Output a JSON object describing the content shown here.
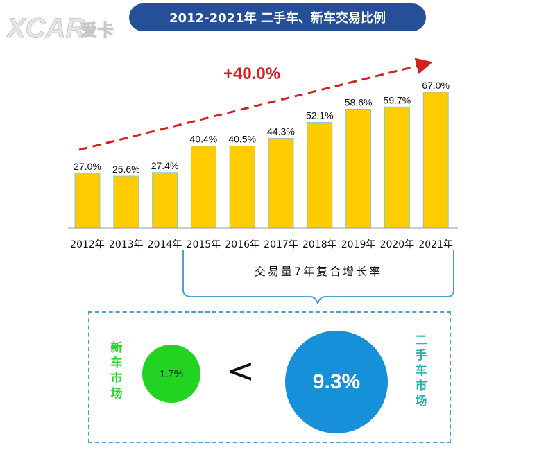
{
  "header": {
    "title": "2012-2021年 二手车、新车交易比例"
  },
  "logo": {
    "text": "XCAR爱卡"
  },
  "chart_data": {
    "type": "bar",
    "categories": [
      "2012年",
      "2013年",
      "2014年",
      "2015年",
      "2016年",
      "2017年",
      "2018年",
      "2019年",
      "2020年",
      "2021年"
    ],
    "values": [
      27.0,
      25.6,
      27.4,
      40.4,
      40.5,
      44.3,
      52.1,
      58.6,
      59.7,
      67.0
    ],
    "value_labels": [
      "27.0%",
      "25.6%",
      "27.4%",
      "40.4%",
      "40.5%",
      "44.3%",
      "52.1%",
      "58.6%",
      "59.7%",
      "67.0%"
    ],
    "ylim": [
      0,
      70
    ],
    "bar_color": "#ffcc00",
    "annotations": {
      "growth": "+40.0%",
      "cagr_caption": "交易量7年复合增长率"
    }
  },
  "comparison": {
    "new_market": {
      "label": "新车市场",
      "value": "1.7%",
      "color": "#22d322"
    },
    "operator": "<",
    "used_market": {
      "label": "二手车市场",
      "value": "9.3%",
      "color": "#1590d9"
    }
  },
  "colors": {
    "title_bg": "#264f9a",
    "trend_arrow": "#d42020",
    "dashed_box": "#4a9fd8",
    "brace": "#4a9fd8"
  }
}
